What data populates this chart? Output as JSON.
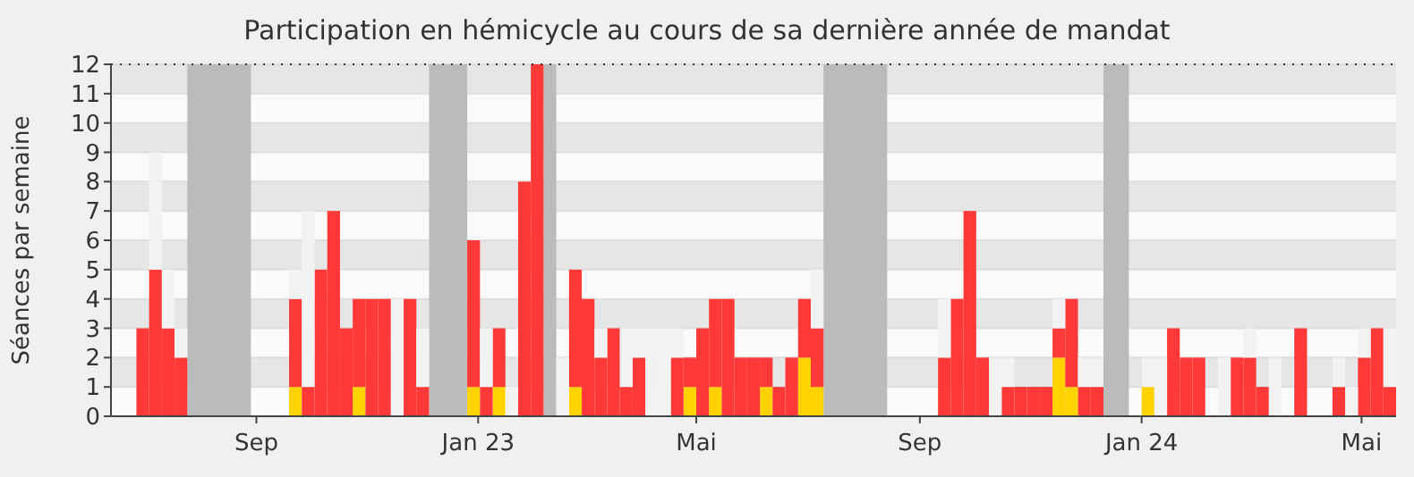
{
  "chart_data": {
    "type": "bar",
    "title": "Participation en hémicycle au cours de sa dernière année de mandat",
    "ylabel": "Séances par semaine",
    "x": [
      "2022-07-11",
      "2022-07-18",
      "2022-07-25",
      "2022-08-01",
      "2022-08-08",
      "2022-08-15",
      "2022-08-22",
      "2022-08-29",
      "2022-09-05",
      "2022-09-12",
      "2022-09-19",
      "2022-09-26",
      "2022-10-03",
      "2022-10-10",
      "2022-10-17",
      "2022-10-24",
      "2022-10-31",
      "2022-11-07",
      "2022-11-14",
      "2022-11-21",
      "2022-11-28",
      "2022-12-05",
      "2022-12-12",
      "2022-12-19",
      "2022-12-26",
      "2023-01-02",
      "2023-01-09",
      "2023-01-16",
      "2023-01-23",
      "2023-01-30",
      "2023-02-06",
      "2023-02-13",
      "2023-02-20",
      "2023-02-27",
      "2023-03-06",
      "2023-03-13",
      "2023-03-20",
      "2023-03-27",
      "2023-04-03",
      "2023-04-10",
      "2023-04-17",
      "2023-04-24",
      "2023-05-01",
      "2023-05-08",
      "2023-05-15",
      "2023-05-22",
      "2023-05-29",
      "2023-06-05",
      "2023-06-12",
      "2023-06-19",
      "2023-06-26",
      "2023-07-03",
      "2023-07-10",
      "2023-07-17",
      "2023-07-24",
      "2023-07-31",
      "2023-08-07",
      "2023-08-14",
      "2023-08-21",
      "2023-08-28",
      "2023-09-04",
      "2023-09-11",
      "2023-09-18",
      "2023-09-25",
      "2023-10-02",
      "2023-10-09",
      "2023-10-16",
      "2023-10-23",
      "2023-10-30",
      "2023-11-06",
      "2023-11-13",
      "2023-11-20",
      "2023-11-27",
      "2023-12-04",
      "2023-12-11",
      "2023-12-18",
      "2023-12-25",
      "2024-01-01",
      "2024-01-08",
      "2024-01-15",
      "2024-01-22",
      "2024-01-29",
      "2024-02-05",
      "2024-02-12",
      "2024-02-19",
      "2024-02-26",
      "2024-03-04",
      "2024-03-11",
      "2024-03-18",
      "2024-03-25",
      "2024-04-01",
      "2024-04-08",
      "2024-04-15",
      "2024-04-22",
      "2024-04-29",
      "2024-05-06",
      "2024-05-13",
      "2024-05-20",
      "2024-05-27"
    ],
    "stacked": true,
    "series": [
      {
        "color": "#ffd200",
        "values": [
          null,
          null,
          null,
          null,
          null,
          null,
          null,
          null,
          null,
          null,
          null,
          null,
          1,
          null,
          null,
          null,
          null,
          1,
          null,
          null,
          null,
          null,
          null,
          null,
          null,
          null,
          1,
          null,
          1,
          null,
          null,
          null,
          null,
          null,
          1,
          null,
          null,
          null,
          null,
          null,
          null,
          null,
          null,
          1,
          null,
          1,
          null,
          null,
          null,
          1,
          null,
          null,
          2,
          1,
          null,
          null,
          null,
          null,
          null,
          null,
          null,
          null,
          null,
          null,
          null,
          null,
          null,
          null,
          null,
          null,
          null,
          null,
          2,
          1,
          null,
          null,
          null,
          null,
          null,
          1,
          null,
          null,
          null,
          null,
          null,
          null,
          null,
          null,
          null,
          null,
          null,
          null,
          null,
          null,
          null,
          null,
          null,
          null,
          null
        ]
      },
      {
        "color": "#ff3838",
        "values": [
          3,
          5,
          3,
          2,
          null,
          null,
          null,
          null,
          null,
          null,
          null,
          null,
          3,
          1,
          5,
          7,
          3,
          3,
          4,
          4,
          null,
          4,
          1,
          null,
          null,
          null,
          5,
          1,
          2,
          null,
          8,
          12,
          null,
          null,
          4,
          4,
          2,
          3,
          1,
          2,
          null,
          null,
          2,
          1,
          3,
          3,
          4,
          2,
          2,
          1,
          1,
          2,
          2,
          2,
          null,
          null,
          null,
          null,
          null,
          null,
          null,
          null,
          null,
          2,
          4,
          7,
          2,
          null,
          1,
          1,
          1,
          1,
          1,
          3,
          1,
          1,
          null,
          null,
          null,
          null,
          null,
          3,
          2,
          2,
          null,
          null,
          2,
          2,
          1,
          null,
          null,
          3,
          null,
          null,
          1,
          null,
          2,
          3,
          1
        ]
      },
      {
        "color": "#f2f2f2",
        "values": [
          null,
          4,
          2,
          1,
          null,
          null,
          null,
          null,
          null,
          null,
          null,
          null,
          1,
          6,
          null,
          null,
          null,
          null,
          null,
          null,
          4,
          null,
          2,
          null,
          null,
          null,
          null,
          2,
          null,
          1,
          null,
          null,
          null,
          2,
          null,
          null,
          1,
          null,
          2,
          1,
          3,
          3,
          1,
          null,
          null,
          null,
          null,
          null,
          null,
          null,
          null,
          null,
          null,
          2,
          null,
          null,
          null,
          null,
          null,
          null,
          null,
          null,
          null,
          2,
          null,
          null,
          null,
          2,
          1,
          null,
          null,
          null,
          1,
          null,
          1,
          1,
          null,
          null,
          null,
          1,
          2,
          null,
          null,
          null,
          null,
          2,
          null,
          1,
          null,
          2,
          null,
          null,
          null,
          null,
          1,
          1,
          1,
          null,
          2
        ]
      }
    ],
    "bands": [
      {
        "axis": "x",
        "from": "2022-08-08",
        "to": "2022-09-12",
        "color": "#bbbbbb"
      },
      {
        "axis": "x",
        "from": "2022-12-19",
        "to": "2023-01-09",
        "color": "#bbbbbb"
      },
      {
        "axis": "x",
        "from": "2023-02-20",
        "to": "2023-02-27",
        "color": "#bbbbbb"
      },
      {
        "axis": "x",
        "from": "2023-07-24",
        "to": "2023-08-28",
        "color": "#bbbbbb"
      },
      {
        "axis": "x",
        "from": "2023-12-25",
        "to": "2024-01-08",
        "color": "#bbbbbb"
      }
    ],
    "xlim": [
      "2022-06-27",
      "2024-06-03"
    ],
    "xticks": [
      {
        "value": "2022-09-15",
        "label": "Sep"
      },
      {
        "value": "2023-01-15",
        "label": "Jan 23"
      },
      {
        "value": "2023-05-15",
        "label": "Mai"
      },
      {
        "value": "2023-09-15",
        "label": "Sep"
      },
      {
        "value": "2024-01-15",
        "label": "Jan 24"
      },
      {
        "value": "2024-05-15",
        "label": "Mai"
      }
    ],
    "ylim": [
      0,
      12
    ],
    "yticks": [
      0,
      1,
      2,
      3,
      4,
      5,
      6,
      7,
      8,
      9,
      10,
      11,
      12
    ],
    "grid": "y"
  }
}
